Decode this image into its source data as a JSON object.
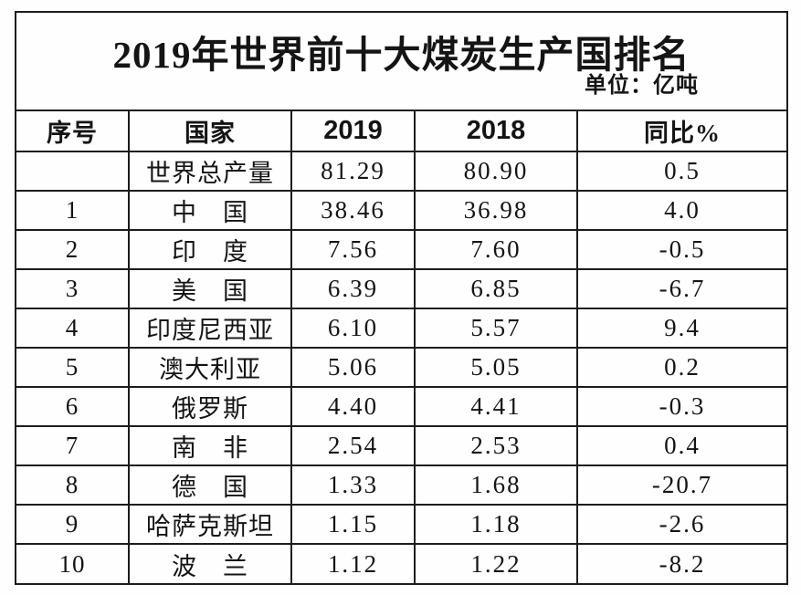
{
  "page": {
    "title": "2019年世界前十大煤炭生产国排名",
    "unit_label": "单位：亿吨"
  },
  "table": {
    "headers": {
      "no": "序号",
      "country": "国家",
      "y2019": "2019",
      "y2018": "2018",
      "yoy": "同比%"
    },
    "rows": [
      {
        "no": "",
        "country": "世界总产量",
        "y2019": "81.29",
        "y2018": "80.90",
        "yoy": "0.5"
      },
      {
        "no": "1",
        "country": "中　国",
        "y2019": "38.46",
        "y2018": "36.98",
        "yoy": "4.0"
      },
      {
        "no": "2",
        "country": "印　度",
        "y2019": "7.56",
        "y2018": "7.60",
        "yoy": "-0.5"
      },
      {
        "no": "3",
        "country": "美　国",
        "y2019": "6.39",
        "y2018": "6.85",
        "yoy": "-6.7"
      },
      {
        "no": "4",
        "country": "印度尼西亚",
        "y2019": "6.10",
        "y2018": "5.57",
        "yoy": "9.4"
      },
      {
        "no": "5",
        "country": "澳大利亚",
        "y2019": "5.06",
        "y2018": "5.05",
        "yoy": "0.2"
      },
      {
        "no": "6",
        "country": "俄罗斯",
        "y2019": "4.40",
        "y2018": "4.41",
        "yoy": "-0.3"
      },
      {
        "no": "7",
        "country": "南　非",
        "y2019": "2.54",
        "y2018": "2.53",
        "yoy": "0.4"
      },
      {
        "no": "8",
        "country": "德　国",
        "y2019": "1.33",
        "y2018": "1.68",
        "yoy": "-20.7"
      },
      {
        "no": "9",
        "country": "哈萨克斯坦",
        "y2019": "1.15",
        "y2018": "1.18",
        "yoy": "-2.6"
      },
      {
        "no": "10",
        "country": "波　兰",
        "y2019": "1.12",
        "y2018": "1.22",
        "yoy": "-8.2"
      }
    ]
  },
  "colors": {
    "border": "#1c1c1c",
    "text": "#141414",
    "background": "#fefefe"
  },
  "chart_data": {
    "type": "table",
    "title": "2019年世界前十大煤炭生产国排名",
    "unit": "亿吨",
    "columns": [
      "序号",
      "国家",
      "2019",
      "2018",
      "同比%"
    ],
    "rows": [
      [
        "",
        "世界总产量",
        81.29,
        80.9,
        0.5
      ],
      [
        "1",
        "中国",
        38.46,
        36.98,
        4.0
      ],
      [
        "2",
        "印度",
        7.56,
        7.6,
        -0.5
      ],
      [
        "3",
        "美国",
        6.39,
        6.85,
        -6.7
      ],
      [
        "4",
        "印度尼西亚",
        6.1,
        5.57,
        9.4
      ],
      [
        "5",
        "澳大利亚",
        5.06,
        5.05,
        0.2
      ],
      [
        "6",
        "俄罗斯",
        4.4,
        4.41,
        -0.3
      ],
      [
        "7",
        "南非",
        2.54,
        2.53,
        0.4
      ],
      [
        "8",
        "德国",
        1.33,
        1.68,
        -20.7
      ],
      [
        "9",
        "哈萨克斯坦",
        1.15,
        1.18,
        -2.6
      ],
      [
        "10",
        "波兰",
        1.12,
        1.22,
        -8.2
      ]
    ]
  }
}
